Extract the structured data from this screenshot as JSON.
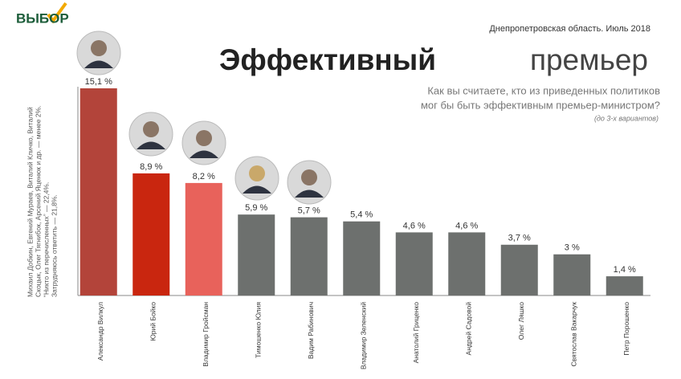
{
  "logo": "ВЫБОР",
  "header": "Днепропетровская область. Июль 2018",
  "title_bold": "Эффективный",
  "title_light": "премьер",
  "question": [
    "Как вы считаете, кто из приведенных политиков",
    "мог бы быть эффективным премьер-министром?"
  ],
  "question_note": "(до 3-х вариантов)",
  "side_note": [
    "Михаил Добкин, Евгений Мураев, Виталий Кличко, Виталий",
    "Скоцык, Олег Тягнибок, Арсений Яценюк и др. — менее 2%.",
    "“Никто из перечисленных” — 22,4%.",
    "Затрудняюсь ответить — 21,8%."
  ],
  "chart_data": {
    "type": "bar",
    "categories": [
      "Александр Вилкул",
      "Юрий Бойко",
      "Владимир Гройсман",
      "Тимошенко Юлия",
      "Вадим Рабинович",
      "Владимир Зеленский",
      "Анатолий Гриценко",
      "Андрей Садовой",
      "Олег Ляшко",
      "Святослав Вакарчук",
      "Петр Порошенко"
    ],
    "values": [
      15.1,
      8.9,
      8.2,
      5.9,
      5.7,
      5.4,
      4.6,
      4.6,
      3.7,
      3,
      1.4
    ],
    "value_labels": [
      "15,1 %",
      "8,9 %",
      "8,2 %",
      "5,9 %",
      "5,7 %",
      "5,4 %",
      "4,6 %",
      "4,6 %",
      "3,7 %",
      "3 %",
      "1,4 %"
    ],
    "colors": [
      "#b3443a",
      "#c9260f",
      "#e8625b",
      "#6d706e",
      "#6d706e",
      "#6d706e",
      "#6d706e",
      "#6d706e",
      "#6d706e",
      "#6d706e",
      "#6d706e"
    ]
  }
}
